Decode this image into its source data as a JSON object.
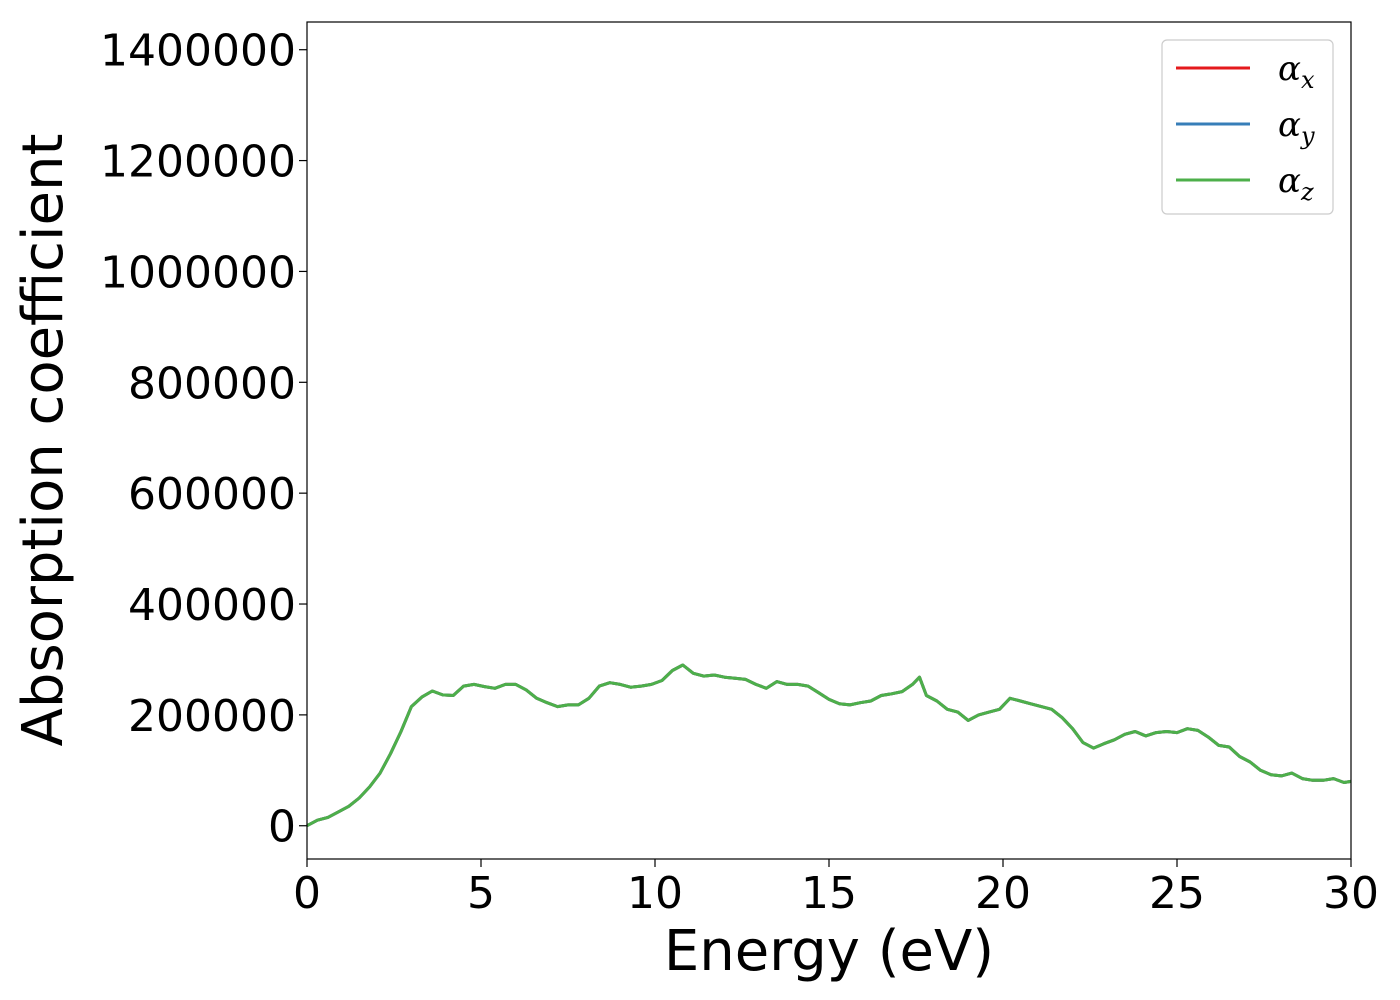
{
  "chart_data": {
    "type": "line",
    "xlabel": "Energy (eV)",
    "ylabel": "Absorption coefficient",
    "xlim": [
      0,
      30
    ],
    "ylim": [
      -60000,
      1450000
    ],
    "xticks": [
      0,
      5,
      10,
      15,
      20,
      25,
      30
    ],
    "yticks": [
      0,
      200000,
      400000,
      600000,
      800000,
      1000000,
      1200000,
      1400000
    ],
    "grid": false,
    "legend_position": "top-right",
    "series": [
      {
        "name": "α",
        "subscript": "x",
        "color": "#e41a1c",
        "x": [
          0,
          0.3,
          0.6,
          0.9,
          1.2,
          1.5,
          1.8,
          2.1,
          2.4,
          2.7,
          3.0,
          3.3,
          3.6,
          3.9,
          4.2,
          4.5,
          4.8,
          5.1,
          5.4,
          5.7,
          6.0,
          6.3,
          6.6,
          6.9,
          7.2,
          7.5,
          7.8,
          8.1,
          8.4,
          8.7,
          9.0,
          9.3,
          9.6,
          9.9,
          10.2,
          10.5,
          10.8,
          11.1,
          11.4,
          11.7,
          12.0,
          12.3,
          12.6,
          12.9,
          13.2,
          13.5,
          13.8,
          14.1,
          14.4,
          14.7,
          15.0,
          15.3,
          15.6,
          15.9,
          16.2,
          16.5,
          16.8,
          17.1,
          17.4,
          17.6,
          17.8,
          18.1,
          18.4,
          18.7,
          19.0,
          19.3,
          19.6,
          19.9,
          20.2,
          20.5,
          20.8,
          21.1,
          21.4,
          21.7,
          22.0,
          22.3,
          22.6,
          22.9,
          23.2,
          23.5,
          23.8,
          24.1,
          24.4,
          24.7,
          25.0,
          25.3,
          25.6,
          25.9,
          26.2,
          26.5,
          26.8,
          27.1,
          27.4,
          27.7,
          28.0,
          28.3,
          28.6,
          28.9,
          29.2,
          29.5,
          29.8,
          30.0
        ],
        "y": [
          0,
          10000,
          15000,
          25000,
          35000,
          50000,
          70000,
          95000,
          130000,
          170000,
          215000,
          232000,
          243000,
          236000,
          235000,
          252000,
          255000,
          251000,
          248000,
          255000,
          255000,
          245000,
          230000,
          222000,
          215000,
          218000,
          218000,
          230000,
          252000,
          258000,
          255000,
          250000,
          252000,
          255000,
          262000,
          280000,
          290000,
          275000,
          270000,
          272000,
          268000,
          266000,
          264000,
          255000,
          248000,
          260000,
          255000,
          255000,
          252000,
          240000,
          228000,
          220000,
          218000,
          222000,
          225000,
          235000,
          238000,
          242000,
          255000,
          268000,
          235000,
          225000,
          210000,
          205000,
          190000,
          200000,
          205000,
          210000,
          230000,
          225000,
          220000,
          215000,
          210000,
          195000,
          175000,
          150000,
          140000,
          148000,
          155000,
          165000,
          170000,
          162000,
          168000,
          170000,
          168000,
          175000,
          172000,
          160000,
          145000,
          142000,
          125000,
          115000,
          100000,
          92000,
          90000,
          95000,
          85000,
          82000,
          82000,
          85000,
          78000,
          80000
        ]
      },
      {
        "name": "α",
        "subscript": "y",
        "color": "#377eb8",
        "x": [
          0,
          0.3,
          0.6,
          0.9,
          1.2,
          1.5,
          1.8,
          2.1,
          2.4,
          2.7,
          3.0,
          3.3,
          3.6,
          3.9,
          4.2,
          4.5,
          4.8,
          5.1,
          5.4,
          5.7,
          6.0,
          6.3,
          6.6,
          6.9,
          7.2,
          7.5,
          7.8,
          8.1,
          8.4,
          8.7,
          9.0,
          9.3,
          9.6,
          9.9,
          10.2,
          10.5,
          10.8,
          11.1,
          11.4,
          11.7,
          12.0,
          12.3,
          12.6,
          12.9,
          13.2,
          13.5,
          13.8,
          14.1,
          14.4,
          14.7,
          15.0,
          15.3,
          15.6,
          15.9,
          16.2,
          16.5,
          16.8,
          17.1,
          17.4,
          17.6,
          17.8,
          18.1,
          18.4,
          18.7,
          19.0,
          19.3,
          19.6,
          19.9,
          20.2,
          20.5,
          20.8,
          21.1,
          21.4,
          21.7,
          22.0,
          22.3,
          22.6,
          22.9,
          23.2,
          23.5,
          23.8,
          24.1,
          24.4,
          24.7,
          25.0,
          25.3,
          25.6,
          25.9,
          26.2,
          26.5,
          26.8,
          27.1,
          27.4,
          27.7,
          28.0,
          28.3,
          28.6,
          28.9,
          29.2,
          29.5,
          29.8,
          30.0
        ],
        "y": [
          0,
          10000,
          15000,
          25000,
          35000,
          50000,
          70000,
          95000,
          130000,
          170000,
          215000,
          232000,
          243000,
          236000,
          235000,
          252000,
          255000,
          251000,
          248000,
          255000,
          255000,
          245000,
          230000,
          222000,
          215000,
          218000,
          218000,
          230000,
          252000,
          258000,
          255000,
          250000,
          252000,
          255000,
          262000,
          280000,
          290000,
          275000,
          270000,
          272000,
          268000,
          266000,
          264000,
          255000,
          248000,
          260000,
          255000,
          255000,
          252000,
          240000,
          228000,
          220000,
          218000,
          222000,
          225000,
          235000,
          238000,
          242000,
          255000,
          268000,
          235000,
          225000,
          210000,
          205000,
          190000,
          200000,
          205000,
          210000,
          230000,
          225000,
          220000,
          215000,
          210000,
          195000,
          175000,
          150000,
          140000,
          148000,
          155000,
          165000,
          170000,
          162000,
          168000,
          170000,
          168000,
          175000,
          172000,
          160000,
          145000,
          142000,
          125000,
          115000,
          100000,
          92000,
          90000,
          95000,
          85000,
          82000,
          82000,
          85000,
          78000,
          80000
        ]
      },
      {
        "name": "α",
        "subscript": "z",
        "color": "#4daf4a",
        "x": [
          0,
          0.3,
          0.6,
          0.9,
          1.2,
          1.5,
          1.8,
          2.1,
          2.4,
          2.7,
          3.0,
          3.3,
          3.6,
          3.9,
          4.2,
          4.5,
          4.8,
          5.1,
          5.4,
          5.7,
          6.0,
          6.3,
          6.6,
          6.9,
          7.2,
          7.5,
          7.8,
          8.1,
          8.4,
          8.7,
          9.0,
          9.3,
          9.6,
          9.9,
          10.2,
          10.5,
          10.8,
          11.1,
          11.4,
          11.7,
          12.0,
          12.3,
          12.6,
          12.9,
          13.2,
          13.5,
          13.8,
          14.1,
          14.4,
          14.7,
          15.0,
          15.3,
          15.6,
          15.9,
          16.2,
          16.5,
          16.8,
          17.1,
          17.4,
          17.6,
          17.8,
          18.1,
          18.4,
          18.7,
          19.0,
          19.3,
          19.6,
          19.9,
          20.2,
          20.5,
          20.8,
          21.1,
          21.4,
          21.7,
          22.0,
          22.3,
          22.6,
          22.9,
          23.2,
          23.5,
          23.8,
          24.1,
          24.4,
          24.7,
          25.0,
          25.3,
          25.6,
          25.9,
          26.2,
          26.5,
          26.8,
          27.1,
          27.4,
          27.7,
          28.0,
          28.3,
          28.6,
          28.9,
          29.2,
          29.5,
          29.8,
          30.0
        ],
        "y": [
          0,
          10000,
          15000,
          25000,
          35000,
          50000,
          70000,
          95000,
          130000,
          170000,
          215000,
          232000,
          243000,
          236000,
          235000,
          252000,
          255000,
          251000,
          248000,
          255000,
          255000,
          245000,
          230000,
          222000,
          215000,
          218000,
          218000,
          230000,
          252000,
          258000,
          255000,
          250000,
          252000,
          255000,
          262000,
          280000,
          290000,
          275000,
          270000,
          272000,
          268000,
          266000,
          264000,
          255000,
          248000,
          260000,
          255000,
          255000,
          252000,
          240000,
          228000,
          220000,
          218000,
          222000,
          225000,
          235000,
          238000,
          242000,
          255000,
          268000,
          235000,
          225000,
          210000,
          205000,
          190000,
          200000,
          205000,
          210000,
          230000,
          225000,
          220000,
          215000,
          210000,
          195000,
          175000,
          150000,
          140000,
          148000,
          155000,
          165000,
          170000,
          162000,
          168000,
          170000,
          168000,
          175000,
          172000,
          160000,
          145000,
          142000,
          125000,
          115000,
          100000,
          92000,
          90000,
          95000,
          85000,
          82000,
          82000,
          85000,
          78000,
          80000
        ]
      }
    ]
  }
}
